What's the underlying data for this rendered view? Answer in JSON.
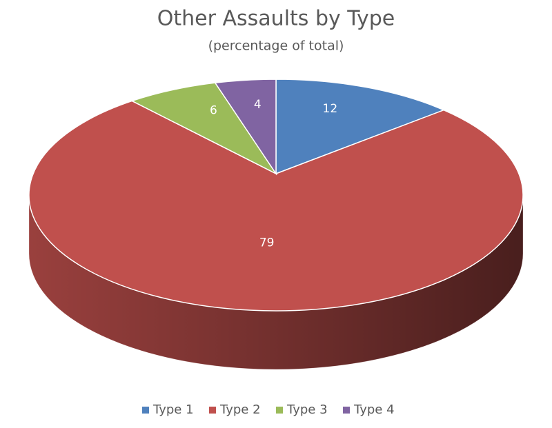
{
  "chart_data": {
    "type": "pie3d",
    "title": "Other Assaults by Type",
    "subtitle": "(percentage of total)",
    "categories": [
      "Type 1",
      "Type 2",
      "Type 3",
      "Type 4"
    ],
    "values": [
      12,
      79,
      6,
      4
    ],
    "colors": [
      "#4f81bd",
      "#c0504d",
      "#9bbb59",
      "#8064a2"
    ],
    "legend": "bottom"
  }
}
